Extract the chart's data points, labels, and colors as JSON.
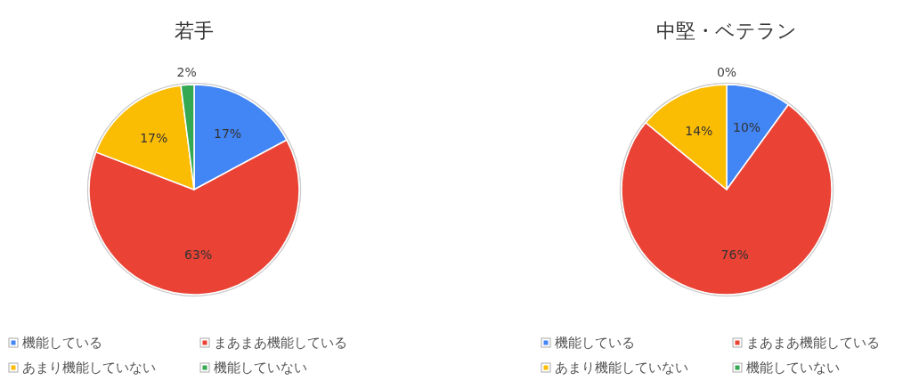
{
  "chart_data": [
    {
      "type": "pie",
      "title": "若手",
      "categories": [
        "機能している",
        "まあまあ機能している",
        "あまり機能していない",
        "機能していない"
      ],
      "values": [
        17,
        63,
        17,
        2
      ],
      "value_labels": [
        "17%",
        "63%",
        "17%",
        "2%"
      ],
      "colors": [
        "#4285f4",
        "#ea4335",
        "#fbbc04",
        "#34a853"
      ],
      "legend": "bottom"
    },
    {
      "type": "pie",
      "title": "中堅・ベテラン",
      "categories": [
        "機能している",
        "まあまあ機能している",
        "あまり機能していない",
        "機能していない"
      ],
      "values": [
        10,
        76,
        14,
        0
      ],
      "value_labels": [
        "10%",
        "76%",
        "14%",
        "0%"
      ],
      "colors": [
        "#4285f4",
        "#ea4335",
        "#fbbc04",
        "#34a853"
      ],
      "legend": "bottom"
    }
  ]
}
